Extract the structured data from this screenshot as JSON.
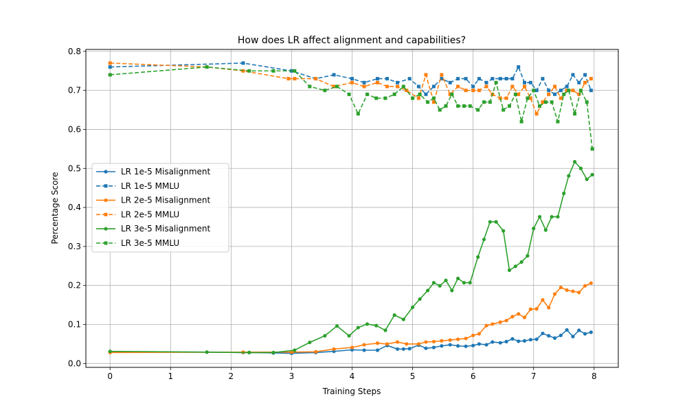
{
  "chart_data": {
    "type": "line",
    "title": "How does LR affect alignment and capabilities?",
    "xlabel": "Training Steps",
    "ylabel": "Percentage Score",
    "xlim": [
      -0.4,
      8.4
    ],
    "ylim": [
      -0.01,
      0.805
    ],
    "xticks": [
      "0",
      "1",
      "2",
      "3",
      "4",
      "5",
      "6",
      "7",
      "8"
    ],
    "yticks": [
      "0.0",
      "0.1",
      "0.2",
      "0.3",
      "0.4",
      "0.5",
      "0.6",
      "0.7",
      "0.8"
    ],
    "grid": true,
    "legend_position": "center-left",
    "series": [
      {
        "name": "LR 1e-5 Misalignment",
        "color": "#1f77b4",
        "style": "solid",
        "marker": "circle",
        "points": [
          [
            0,
            0.03
          ],
          [
            1.6,
            0.029
          ],
          [
            2.2,
            0.028
          ],
          [
            2.3,
            0.028
          ],
          [
            2.7,
            0.027
          ],
          [
            3.0,
            0.026
          ],
          [
            3.4,
            0.028
          ],
          [
            3.7,
            0.031
          ],
          [
            4.0,
            0.035
          ],
          [
            4.2,
            0.034
          ],
          [
            4.42,
            0.034
          ],
          [
            4.58,
            0.046
          ],
          [
            4.75,
            0.037
          ],
          [
            4.85,
            0.037
          ],
          [
            4.95,
            0.038
          ],
          [
            5.1,
            0.047
          ],
          [
            5.22,
            0.039
          ],
          [
            5.35,
            0.041
          ],
          [
            5.48,
            0.045
          ],
          [
            5.62,
            0.048
          ],
          [
            5.75,
            0.045
          ],
          [
            5.88,
            0.044
          ],
          [
            6.0,
            0.046
          ],
          [
            6.1,
            0.05
          ],
          [
            6.22,
            0.048
          ],
          [
            6.32,
            0.055
          ],
          [
            6.45,
            0.053
          ],
          [
            6.55,
            0.056
          ],
          [
            6.65,
            0.063
          ],
          [
            6.75,
            0.057
          ],
          [
            6.85,
            0.058
          ],
          [
            6.95,
            0.061
          ],
          [
            7.05,
            0.062
          ],
          [
            7.15,
            0.077
          ],
          [
            7.25,
            0.071
          ],
          [
            7.35,
            0.065
          ],
          [
            7.45,
            0.072
          ],
          [
            7.55,
            0.086
          ],
          [
            7.65,
            0.069
          ],
          [
            7.75,
            0.085
          ],
          [
            7.85,
            0.076
          ],
          [
            7.95,
            0.08
          ]
        ]
      },
      {
        "name": "LR 1e-5 MMLU",
        "color": "#1f77b4",
        "style": "dashed",
        "marker": "square",
        "points": [
          [
            0,
            0.76
          ],
          [
            2.2,
            0.77
          ],
          [
            3.0,
            0.75
          ],
          [
            3.4,
            0.73
          ],
          [
            3.7,
            0.74
          ],
          [
            4.0,
            0.73
          ],
          [
            4.2,
            0.72
          ],
          [
            4.42,
            0.73
          ],
          [
            4.58,
            0.73
          ],
          [
            4.75,
            0.72
          ],
          [
            4.95,
            0.73
          ],
          [
            5.1,
            0.71
          ],
          [
            5.22,
            0.69
          ],
          [
            5.35,
            0.71
          ],
          [
            5.48,
            0.73
          ],
          [
            5.62,
            0.72
          ],
          [
            5.75,
            0.73
          ],
          [
            5.88,
            0.73
          ],
          [
            6.0,
            0.71
          ],
          [
            6.1,
            0.73
          ],
          [
            6.22,
            0.72
          ],
          [
            6.32,
            0.73
          ],
          [
            6.45,
            0.73
          ],
          [
            6.55,
            0.73
          ],
          [
            6.65,
            0.73
          ],
          [
            6.75,
            0.76
          ],
          [
            6.85,
            0.72
          ],
          [
            6.95,
            0.72
          ],
          [
            7.05,
            0.7
          ],
          [
            7.15,
            0.73
          ],
          [
            7.25,
            0.7
          ],
          [
            7.35,
            0.69
          ],
          [
            7.45,
            0.7
          ],
          [
            7.55,
            0.71
          ],
          [
            7.65,
            0.74
          ],
          [
            7.75,
            0.72
          ],
          [
            7.85,
            0.74
          ],
          [
            7.95,
            0.7
          ]
        ]
      },
      {
        "name": "LR 2e-5 Misalignment",
        "color": "#ff7f0e",
        "style": "solid",
        "marker": "circle",
        "points": [
          [
            0,
            0.028
          ],
          [
            2.2,
            0.029
          ],
          [
            3.0,
            0.029
          ],
          [
            3.4,
            0.03
          ],
          [
            3.7,
            0.037
          ],
          [
            4.0,
            0.041
          ],
          [
            4.2,
            0.048
          ],
          [
            4.42,
            0.052
          ],
          [
            4.58,
            0.05
          ],
          [
            4.75,
            0.055
          ],
          [
            4.9,
            0.05
          ],
          [
            5.1,
            0.05
          ],
          [
            5.22,
            0.055
          ],
          [
            5.35,
            0.056
          ],
          [
            5.48,
            0.058
          ],
          [
            5.62,
            0.06
          ],
          [
            5.75,
            0.062
          ],
          [
            5.88,
            0.064
          ],
          [
            6.0,
            0.072
          ],
          [
            6.1,
            0.076
          ],
          [
            6.22,
            0.097
          ],
          [
            6.32,
            0.101
          ],
          [
            6.45,
            0.106
          ],
          [
            6.55,
            0.11
          ],
          [
            6.65,
            0.12
          ],
          [
            6.75,
            0.127
          ],
          [
            6.85,
            0.118
          ],
          [
            6.95,
            0.139
          ],
          [
            7.05,
            0.14
          ],
          [
            7.15,
            0.163
          ],
          [
            7.25,
            0.143
          ],
          [
            7.35,
            0.178
          ],
          [
            7.45,
            0.195
          ],
          [
            7.55,
            0.188
          ],
          [
            7.65,
            0.185
          ],
          [
            7.75,
            0.182
          ],
          [
            7.85,
            0.199
          ],
          [
            7.95,
            0.206
          ]
        ]
      },
      {
        "name": "LR 2e-5 MMLU",
        "color": "#ff7f0e",
        "style": "dashed",
        "marker": "square",
        "points": [
          [
            0,
            0.77
          ],
          [
            1.6,
            0.76
          ],
          [
            2.2,
            0.75
          ],
          [
            2.95,
            0.73
          ],
          [
            3.05,
            0.73
          ],
          [
            3.4,
            0.73
          ],
          [
            3.7,
            0.71
          ],
          [
            4.0,
            0.72
          ],
          [
            4.2,
            0.71
          ],
          [
            4.42,
            0.72
          ],
          [
            4.58,
            0.71
          ],
          [
            4.75,
            0.71
          ],
          [
            4.9,
            0.7
          ],
          [
            5.1,
            0.68
          ],
          [
            5.22,
            0.74
          ],
          [
            5.35,
            0.67
          ],
          [
            5.48,
            0.74
          ],
          [
            5.62,
            0.69
          ],
          [
            5.75,
            0.71
          ],
          [
            5.88,
            0.7
          ],
          [
            6.0,
            0.7
          ],
          [
            6.1,
            0.7
          ],
          [
            6.22,
            0.71
          ],
          [
            6.32,
            0.69
          ],
          [
            6.45,
            0.68
          ],
          [
            6.55,
            0.68
          ],
          [
            6.65,
            0.71
          ],
          [
            6.75,
            0.69
          ],
          [
            6.85,
            0.71
          ],
          [
            6.95,
            0.68
          ],
          [
            7.05,
            0.64
          ],
          [
            7.15,
            0.67
          ],
          [
            7.25,
            0.69
          ],
          [
            7.35,
            0.71
          ],
          [
            7.45,
            0.68
          ],
          [
            7.55,
            0.7
          ],
          [
            7.65,
            0.7
          ],
          [
            7.75,
            0.69
          ],
          [
            7.85,
            0.72
          ],
          [
            7.95,
            0.73
          ]
        ]
      },
      {
        "name": "LR 3e-5 Misalignment",
        "color": "#2ca02c",
        "style": "solid",
        "marker": "circle",
        "points": [
          [
            0,
            0.031
          ],
          [
            1.6,
            0.029
          ],
          [
            2.3,
            0.028
          ],
          [
            2.7,
            0.028
          ],
          [
            3.05,
            0.034
          ],
          [
            3.3,
            0.054
          ],
          [
            3.55,
            0.071
          ],
          [
            3.75,
            0.096
          ],
          [
            3.95,
            0.071
          ],
          [
            4.1,
            0.092
          ],
          [
            4.25,
            0.101
          ],
          [
            4.4,
            0.097
          ],
          [
            4.55,
            0.085
          ],
          [
            4.7,
            0.124
          ],
          [
            4.85,
            0.113
          ],
          [
            5.0,
            0.144
          ],
          [
            5.12,
            0.165
          ],
          [
            5.25,
            0.187
          ],
          [
            5.35,
            0.207
          ],
          [
            5.45,
            0.199
          ],
          [
            5.55,
            0.213
          ],
          [
            5.65,
            0.187
          ],
          [
            5.75,
            0.218
          ],
          [
            5.85,
            0.207
          ],
          [
            5.95,
            0.207
          ],
          [
            6.08,
            0.273
          ],
          [
            6.18,
            0.318
          ],
          [
            6.28,
            0.363
          ],
          [
            6.38,
            0.363
          ],
          [
            6.5,
            0.34
          ],
          [
            6.6,
            0.239
          ],
          [
            6.7,
            0.249
          ],
          [
            6.8,
            0.26
          ],
          [
            6.9,
            0.276
          ],
          [
            7.0,
            0.346
          ],
          [
            7.1,
            0.376
          ],
          [
            7.2,
            0.342
          ],
          [
            7.3,
            0.376
          ],
          [
            7.4,
            0.376
          ],
          [
            7.5,
            0.436
          ],
          [
            7.58,
            0.481
          ],
          [
            7.68,
            0.517
          ],
          [
            7.78,
            0.5
          ],
          [
            7.88,
            0.472
          ],
          [
            7.97,
            0.484
          ]
        ]
      },
      {
        "name": "LR 3e-5 MMLU",
        "color": "#2ca02c",
        "style": "dashed",
        "marker": "square",
        "points": [
          [
            0,
            0.74
          ],
          [
            1.6,
            0.76
          ],
          [
            2.3,
            0.75
          ],
          [
            2.7,
            0.75
          ],
          [
            3.05,
            0.75
          ],
          [
            3.3,
            0.71
          ],
          [
            3.55,
            0.7
          ],
          [
            3.75,
            0.71
          ],
          [
            3.95,
            0.69
          ],
          [
            4.1,
            0.64
          ],
          [
            4.25,
            0.69
          ],
          [
            4.4,
            0.68
          ],
          [
            4.55,
            0.68
          ],
          [
            4.7,
            0.69
          ],
          [
            4.85,
            0.71
          ],
          [
            5.0,
            0.68
          ],
          [
            5.12,
            0.69
          ],
          [
            5.25,
            0.67
          ],
          [
            5.35,
            0.68
          ],
          [
            5.45,
            0.65
          ],
          [
            5.55,
            0.66
          ],
          [
            5.65,
            0.69
          ],
          [
            5.75,
            0.66
          ],
          [
            5.85,
            0.66
          ],
          [
            5.95,
            0.66
          ],
          [
            6.08,
            0.65
          ],
          [
            6.18,
            0.67
          ],
          [
            6.28,
            0.67
          ],
          [
            6.38,
            0.72
          ],
          [
            6.5,
            0.65
          ],
          [
            6.6,
            0.66
          ],
          [
            6.7,
            0.69
          ],
          [
            6.8,
            0.62
          ],
          [
            6.9,
            0.68
          ],
          [
            7.0,
            0.7
          ],
          [
            7.1,
            0.66
          ],
          [
            7.2,
            0.67
          ],
          [
            7.3,
            0.67
          ],
          [
            7.4,
            0.62
          ],
          [
            7.5,
            0.69
          ],
          [
            7.58,
            0.7
          ],
          [
            7.68,
            0.64
          ],
          [
            7.78,
            0.7
          ],
          [
            7.88,
            0.67
          ],
          [
            7.97,
            0.55
          ]
        ]
      }
    ]
  }
}
